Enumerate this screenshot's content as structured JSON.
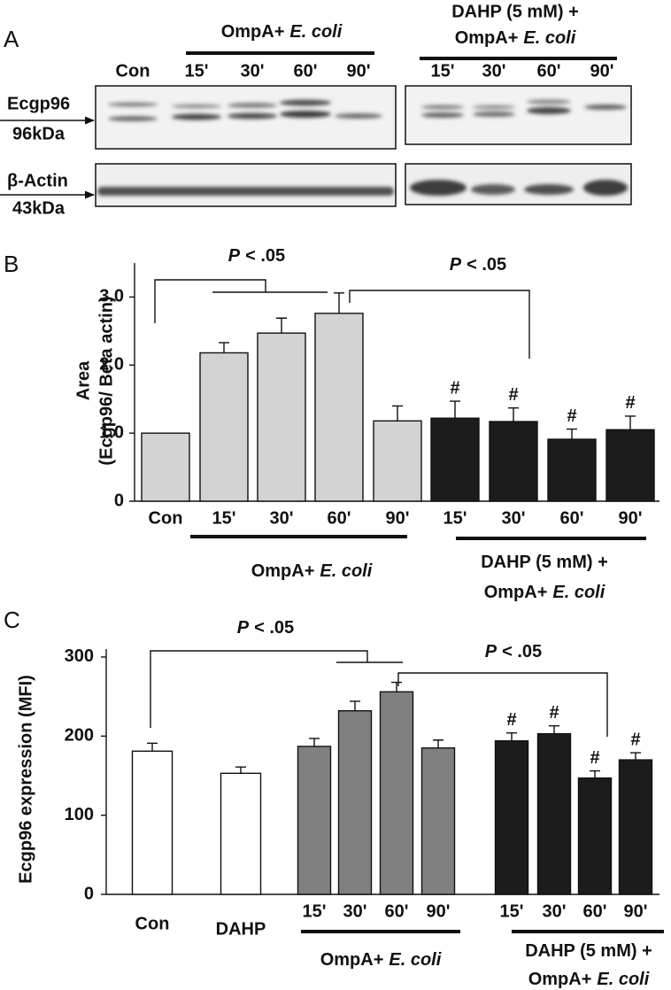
{
  "blot": {
    "panel": "A",
    "lanes_left": [
      "Con",
      "15'",
      "30'",
      "60'",
      "90'"
    ],
    "lanes_right": [
      "15'",
      "30'",
      "60'",
      "90'"
    ],
    "group_left": {
      "text": "OmpA+",
      "italic": "E. coli"
    },
    "group_right": [
      {
        "text": "DAHP (5 mM) +"
      },
      {
        "text": "OmpA+",
        "italic": "E. coli"
      }
    ],
    "markers": [
      {
        "name": "Ecgp96",
        "size": "96kDa"
      },
      {
        "name": "β-Actin",
        "size": "43kDa"
      }
    ]
  },
  "chart_data": [
    {
      "type": "bar",
      "panel": "B",
      "ylabel": [
        "Area",
        "(Ecgp96/ Beta actin)"
      ],
      "categories": [
        "Con",
        "15'",
        "30'",
        "60'",
        "90'",
        "15'",
        "30'",
        "60'",
        "90'"
      ],
      "values": [
        1.0,
        2.18,
        2.47,
        2.76,
        1.18,
        1.22,
        1.17,
        0.91,
        1.05
      ],
      "errors": [
        null,
        0.15,
        0.22,
        0.3,
        0.22,
        0.25,
        0.2,
        0.15,
        0.2
      ],
      "colors": [
        "#d3d3d3",
        "#d3d3d3",
        "#d3d3d3",
        "#d3d3d3",
        "#d3d3d3",
        "#1c1c1c",
        "#1c1c1c",
        "#1c1c1c",
        "#1c1c1c"
      ],
      "sig_labels": [
        null,
        null,
        null,
        null,
        null,
        "#",
        "#",
        "#",
        "#"
      ],
      "ylim": [
        0,
        3.5
      ],
      "yticks": [
        0,
        {
          "value": 1,
          "label": "1.0"
        },
        {
          "value": 2,
          "label": "2.0"
        },
        {
          "value": 3,
          "label": "3.0"
        }
      ],
      "groups": [
        {
          "lines": [
            {
              "text": "OmpA+",
              "italic": "E. coli"
            }
          ]
        },
        {
          "lines": [
            {
              "text": "DAHP (5 mM) +"
            },
            {
              "text": "OmpA+",
              "italic": "E. coli"
            }
          ]
        }
      ],
      "p_labels": [
        {
          "italic": "P",
          "text": "< .05"
        },
        {
          "italic": "P",
          "text": "< .05"
        }
      ]
    },
    {
      "type": "bar",
      "panel": "C",
      "ylabel": [
        "Ecgp96 expression (MFI)"
      ],
      "categories": [
        "Con",
        "DAHP",
        "15'",
        "30'",
        "60'",
        "90'",
        "15'",
        "30'",
        "60'",
        "90'"
      ],
      "values": [
        181,
        153,
        187,
        232,
        256,
        185,
        194,
        203,
        147,
        170
      ],
      "errors": [
        10,
        8,
        10,
        12,
        12,
        10,
        10,
        10,
        9,
        9
      ],
      "colors": [
        "#ffffff",
        "#ffffff",
        "#808080",
        "#808080",
        "#808080",
        "#808080",
        "#1c1c1c",
        "#1c1c1c",
        "#1c1c1c",
        "#1c1c1c"
      ],
      "sig_labels": [
        null,
        null,
        null,
        null,
        null,
        null,
        "#",
        "#",
        "#",
        "#"
      ],
      "ylim": [
        0,
        310
      ],
      "yticks": [
        0,
        100,
        200,
        300
      ],
      "groups": [
        {
          "lines": [
            {
              "text": "OmpA+",
              "italic": "E. coli"
            }
          ]
        },
        {
          "lines": [
            {
              "text": "DAHP (5 mM) +"
            },
            {
              "text": "OmpA+",
              "italic": "E. coli"
            }
          ]
        }
      ],
      "p_labels": [
        {
          "italic": "P",
          "text": "< .05"
        },
        {
          "italic": "P",
          "text": "< .05"
        }
      ]
    }
  ]
}
